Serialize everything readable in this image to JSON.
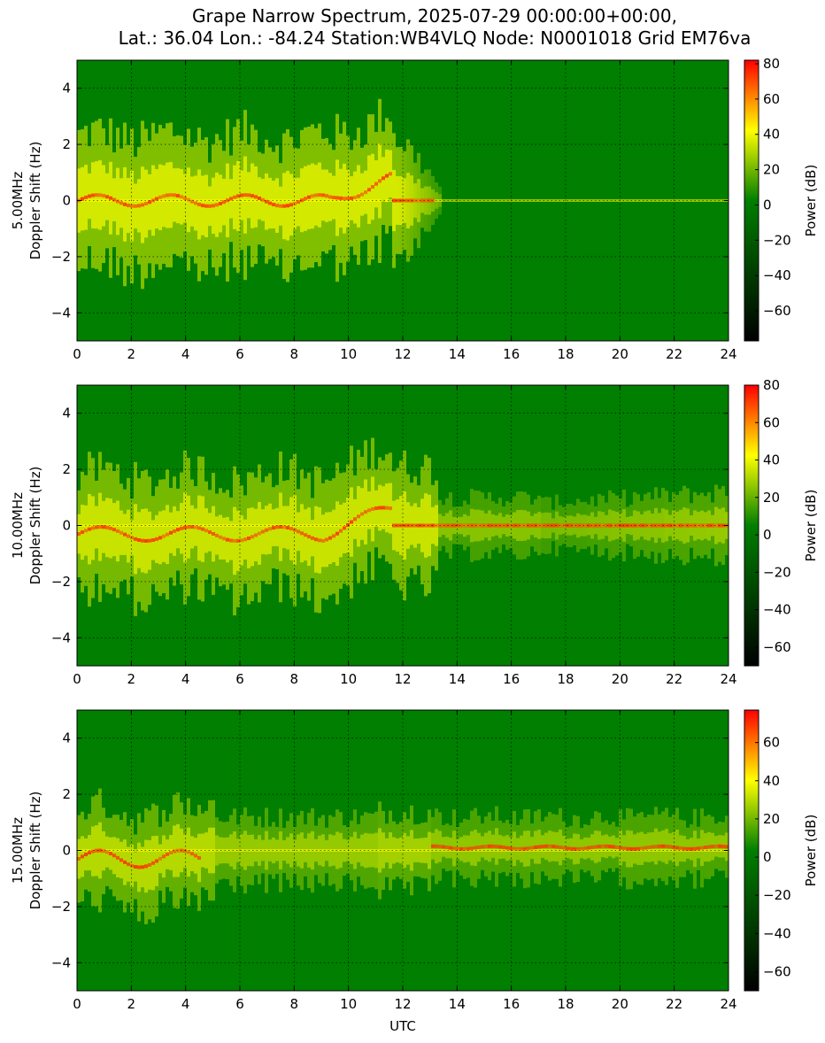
{
  "title_line1": "Grape Narrow Spectrum, 2025-07-29 00:00:00+00:00,",
  "title_line2": "Lat.: 36.04 Lon.: -84.24 Station:WB4VLQ Node: N0001018 Grid EM76va",
  "colors": {
    "cmap": [
      "#000000",
      "#007f00",
      "#ffff00",
      "#ff0000"
    ],
    "background_green": "#007f00",
    "signal_yellow": "#ffff00",
    "peak_red": "#ff3000"
  },
  "chart_data": [
    {
      "type": "heatmap",
      "frequency_label": "5.00MHz",
      "ylabel": "5.00MHz Doppler Shift (Hz)",
      "ylabel_line1": "5.00MHz",
      "ylabel_line2": "Doppler Shift (Hz)",
      "xlabel": "",
      "xlim": [
        0,
        24
      ],
      "ylim": [
        -5,
        5
      ],
      "x_ticks": [
        "0",
        "2",
        "4",
        "6",
        "8",
        "10",
        "12",
        "14",
        "16",
        "18",
        "20",
        "22",
        "24"
      ],
      "y_ticks": [
        "−4",
        "−2",
        "0",
        "2",
        "4"
      ],
      "grid": true,
      "colorbar": {
        "label": "Power (dB)",
        "range": [
          -77,
          82
        ],
        "ticks": [
          "80",
          "60",
          "40",
          "20",
          "0",
          "−20",
          "−40",
          "−60"
        ]
      }
    },
    {
      "type": "heatmap",
      "frequency_label": "10.00MHz",
      "ylabel": "10.00MHz Doppler Shift (Hz)",
      "ylabel_line1": "10.00MHz",
      "ylabel_line2": "Doppler Shift (Hz)",
      "xlabel": "",
      "xlim": [
        0,
        24
      ],
      "ylim": [
        -5,
        5
      ],
      "x_ticks": [
        "0",
        "2",
        "4",
        "6",
        "8",
        "10",
        "12",
        "14",
        "16",
        "18",
        "20",
        "22",
        "24"
      ],
      "y_ticks": [
        "−4",
        "−2",
        "0",
        "2",
        "4"
      ],
      "grid": true,
      "colorbar": {
        "label": "Power (dB)",
        "range": [
          -70,
          80
        ],
        "ticks": [
          "80",
          "60",
          "40",
          "20",
          "0",
          "−20",
          "−40",
          "−60"
        ]
      }
    },
    {
      "type": "heatmap",
      "frequency_label": "15.00MHz",
      "ylabel": "15.00MHz Doppler Shift (Hz)",
      "ylabel_line1": "15.00MHz",
      "ylabel_line2": "Doppler Shift (Hz)",
      "xlabel": "UTC",
      "xlim": [
        0,
        24
      ],
      "ylim": [
        -5,
        5
      ],
      "x_ticks": [
        "0",
        "2",
        "4",
        "6",
        "8",
        "10",
        "12",
        "14",
        "16",
        "18",
        "20",
        "22",
        "24"
      ],
      "y_ticks": [
        "−4",
        "−2",
        "0",
        "2",
        "4"
      ],
      "grid": true,
      "colorbar": {
        "label": "Power (dB)",
        "range": [
          -70,
          77
        ],
        "ticks": [
          "60",
          "40",
          "20",
          "0",
          "−20",
          "−40",
          "−60"
        ]
      }
    }
  ]
}
